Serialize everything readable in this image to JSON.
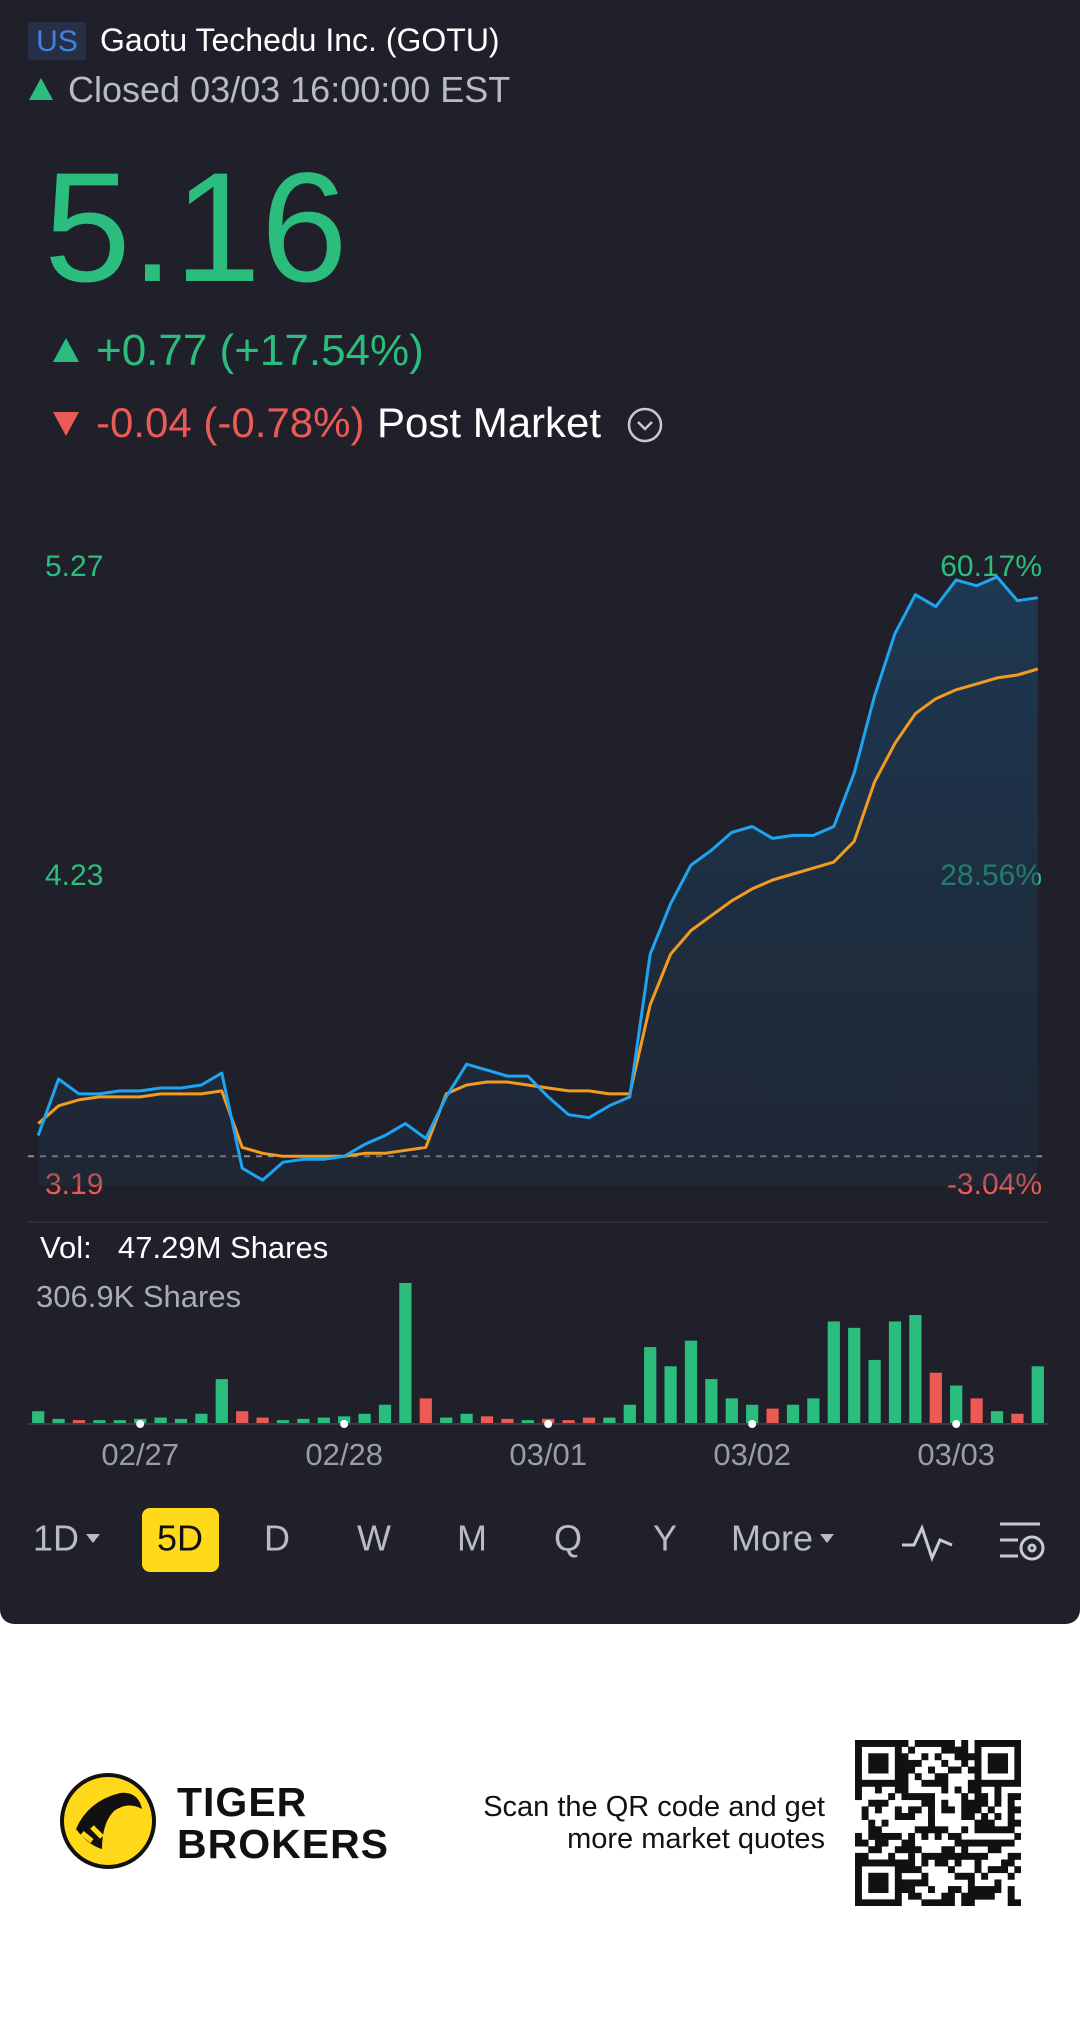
{
  "header": {
    "market": "US",
    "name": "Gaotu Techedu Inc. (GOTU)",
    "status": "Closed 03/03 16:00:00 EST"
  },
  "quote": {
    "price": "5.16",
    "change": "+0.77 (+17.54%)",
    "post_change": "-0.04 (-0.78%)",
    "post_label": "Post Market"
  },
  "chart_data": [
    {
      "type": "line",
      "categories": [
        null,
        null,
        null,
        null,
        null,
        "02/27",
        null,
        null,
        null,
        null,
        null,
        null,
        null,
        null,
        null,
        "02/28",
        null,
        null,
        null,
        null,
        null,
        null,
        null,
        null,
        null,
        "03/01",
        null,
        null,
        null,
        null,
        null,
        null,
        null,
        null,
        null,
        "03/02",
        null,
        null,
        null,
        null,
        null,
        null,
        null,
        null,
        null,
        "03/03",
        null,
        null,
        null,
        null
      ],
      "series": [
        {
          "color": "#1ea5f2",
          "values": [
            3.36,
            3.55,
            3.5,
            3.5,
            3.51,
            3.51,
            3.52,
            3.52,
            3.53,
            3.57,
            3.25,
            3.21,
            3.27,
            3.28,
            3.28,
            3.29,
            3.33,
            3.36,
            3.4,
            3.35,
            3.49,
            3.6,
            3.58,
            3.56,
            3.56,
            3.49,
            3.43,
            3.42,
            3.46,
            3.49,
            3.97,
            4.14,
            4.27,
            4.32,
            4.38,
            4.4,
            4.36,
            4.37,
            4.37,
            4.4,
            4.58,
            4.84,
            5.05,
            5.18,
            5.14,
            5.23,
            5.21,
            5.24,
            5.16,
            5.17
          ]
        },
        {
          "color": "#f29b1f",
          "values": [
            3.4,
            3.46,
            3.48,
            3.49,
            3.49,
            3.49,
            3.5,
            3.5,
            3.5,
            3.51,
            3.32,
            3.3,
            3.29,
            3.29,
            3.29,
            3.29,
            3.3,
            3.3,
            3.31,
            3.32,
            3.5,
            3.53,
            3.54,
            3.54,
            3.53,
            3.52,
            3.51,
            3.51,
            3.5,
            3.5,
            3.8,
            3.97,
            4.05,
            4.1,
            4.15,
            4.19,
            4.22,
            4.24,
            4.26,
            4.28,
            4.35,
            4.55,
            4.68,
            4.78,
            4.83,
            4.86,
            4.88,
            4.9,
            4.91,
            4.93
          ]
        }
      ],
      "ylim": [
        3.19,
        5.27
      ],
      "yticks": [
        3.19,
        4.23,
        5.27
      ],
      "y2lim": [
        -3.04,
        60.17
      ],
      "y2ticks": [
        {
          "value": -3.04,
          "label": "-3.04%"
        },
        {
          "value": 28.56,
          "label": "28.56%"
        },
        {
          "value": 60.17,
          "label": "60.17%"
        }
      ],
      "up_color": "#2bbd7e",
      "down_color": "#ec5a55"
    },
    {
      "type": "bar",
      "title": "Vol:",
      "total": "47.29M Shares",
      "values": [
        27900,
        11200,
        8400,
        8400,
        8400,
        11200,
        14000,
        11200,
        22300,
        97700,
        27900,
        14000,
        8400,
        11200,
        14000,
        16700,
        22300,
        41900,
        306900,
        55800,
        14000,
        22300,
        16700,
        11200,
        8400,
        11200,
        8400,
        14000,
        14000,
        41900,
        167400,
        125600,
        181400,
        97700,
        55800,
        41900,
        33500,
        41900,
        55800,
        223200,
        209300,
        139500,
        223200,
        237200,
        111600,
        83700,
        55800,
        27900,
        22300,
        125600
      ],
      "ylim": [
        0,
        306900
      ],
      "yticks": [
        {
          "value": 306900,
          "label": "306.9K Shares"
        }
      ],
      "up_color": "#2bbd7e",
      "down_color": "#ec5a55"
    }
  ],
  "toolbar": {
    "tabs": [
      {
        "label": "1D",
        "dropdown": true
      },
      {
        "label": "5D",
        "selected": true
      },
      {
        "label": "D"
      },
      {
        "label": "W"
      },
      {
        "label": "M"
      },
      {
        "label": "Q"
      },
      {
        "label": "Y"
      },
      {
        "label": "More",
        "dropdown": true
      }
    ]
  },
  "footer": {
    "brand": [
      "TIGER",
      "BROKERS"
    ],
    "qr_text": [
      "Scan the QR code and get",
      "more market quotes"
    ]
  }
}
